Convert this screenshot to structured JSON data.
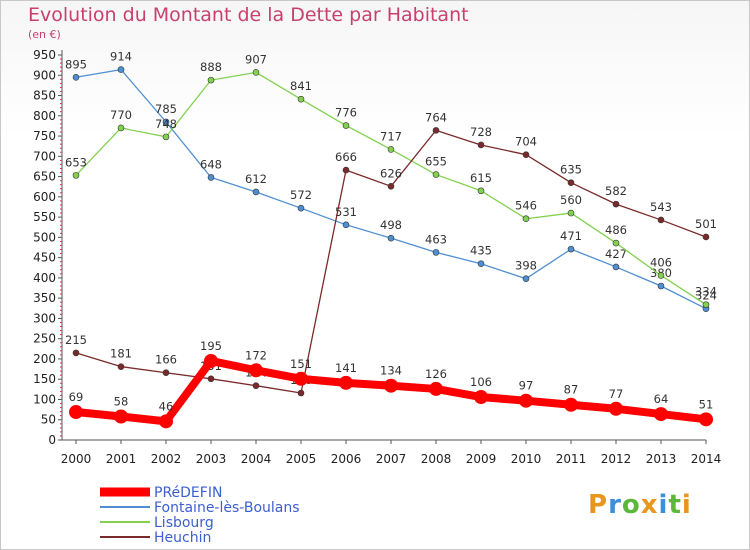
{
  "header": {
    "title": "Evolution du Montant de la Dette par Habitant",
    "subtitle": "(en €)"
  },
  "logo": {
    "text": "Proxiti",
    "colors": [
      "#e8961e",
      "#3c8fd8",
      "#5bb83a",
      "#e8961e",
      "#3c8fd8",
      "#5bb83a",
      "#e8961e"
    ]
  },
  "chart_data": {
    "type": "line",
    "x": [
      2000,
      2001,
      2002,
      2003,
      2004,
      2005,
      2006,
      2007,
      2008,
      2009,
      2010,
      2011,
      2012,
      2013,
      2014
    ],
    "ylim": [
      0,
      950
    ],
    "yticks": [
      0,
      50,
      100,
      150,
      200,
      250,
      300,
      350,
      400,
      450,
      500,
      550,
      600,
      650,
      700,
      750,
      800,
      850,
      900,
      950
    ],
    "grid": false,
    "legend": "bottom-left",
    "series": [
      {
        "name": "PRéDEFIN",
        "color": "#ff0000",
        "values": [
          69,
          58,
          46,
          195,
          172,
          151,
          141,
          134,
          126,
          106,
          97,
          87,
          77,
          64,
          51
        ]
      },
      {
        "name": "Fontaine-lès-Boulans",
        "color": "#4f8fd1",
        "values": [
          895,
          914,
          785,
          648,
          612,
          572,
          531,
          498,
          463,
          435,
          398,
          471,
          427,
          380,
          324
        ]
      },
      {
        "name": "Lisbourg",
        "color": "#82d14f",
        "values": [
          653,
          770,
          748,
          888,
          907,
          841,
          776,
          717,
          655,
          615,
          546,
          560,
          486,
          406,
          334
        ]
      },
      {
        "name": "Heuchin",
        "color": "#7a2a2a",
        "values": [
          215,
          181,
          166,
          151,
          134,
          116,
          666,
          626,
          764,
          728,
          704,
          635,
          582,
          543,
          501
        ]
      }
    ]
  }
}
